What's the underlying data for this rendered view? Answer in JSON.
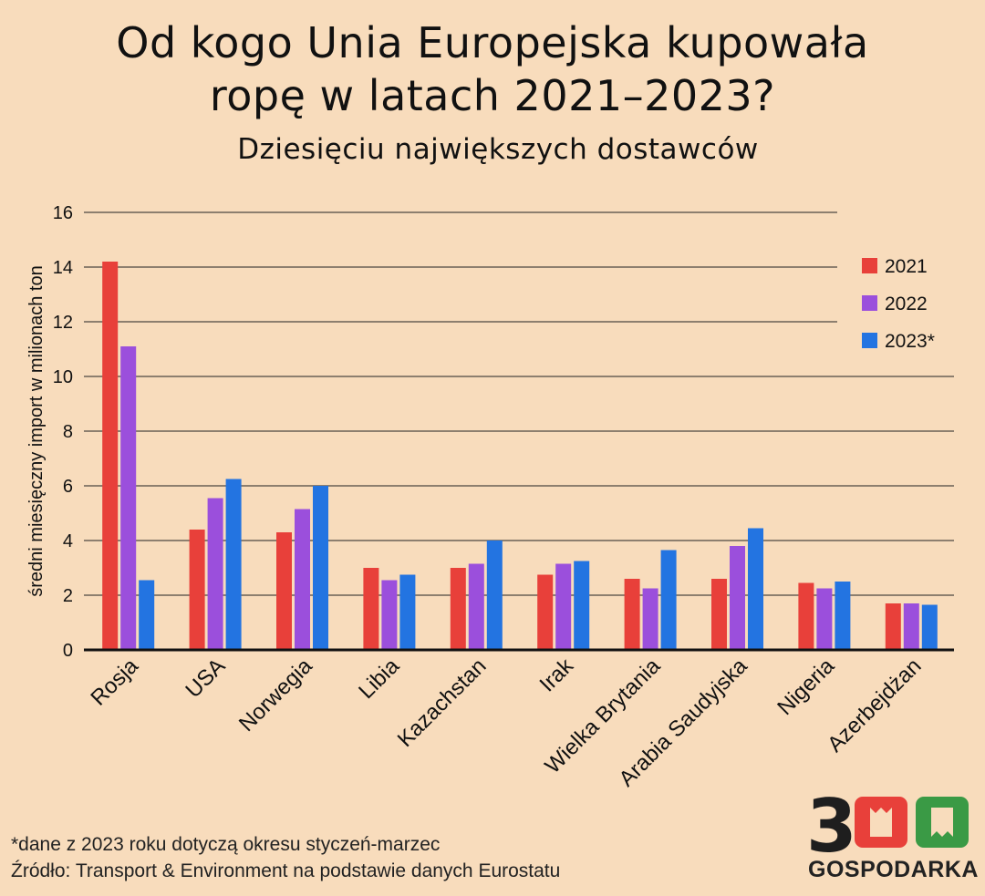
{
  "header": {
    "title_line1": "Od kogo Unia Europejska kupowała",
    "title_line2": "ropę w latach 2021–2023?",
    "subtitle": "Dziesięciu największych dostawców"
  },
  "chart_data": {
    "type": "bar",
    "title": "Od kogo Unia Europejska kupowała ropę w latach 2021–2023?",
    "subtitle": "Dziesięciu największych dostawców",
    "xlabel": "",
    "ylabel": "średni miesięczny import w milionach ton",
    "ylim": [
      0,
      16
    ],
    "yticks": [
      0,
      2,
      4,
      6,
      8,
      10,
      12,
      14,
      16
    ],
    "grid": true,
    "legend_position": "top-right",
    "categories": [
      "Rosja",
      "USA",
      "Norwegia",
      "Libia",
      "Kazachstan",
      "Irak",
      "Wielka Brytania",
      "Arabia Saudyjska",
      "Nigeria",
      "Azerbejdżan"
    ],
    "series": [
      {
        "name": "2021",
        "color": "#e8403a",
        "values": [
          14.2,
          4.4,
          4.3,
          3.0,
          3.0,
          2.75,
          2.6,
          2.6,
          2.45,
          1.7
        ]
      },
      {
        "name": "2022",
        "color": "#9b4fdc",
        "values": [
          11.1,
          5.55,
          5.15,
          2.55,
          3.15,
          3.15,
          2.25,
          3.8,
          2.25,
          1.7
        ]
      },
      {
        "name": "2023*",
        "color": "#2374e1",
        "values": [
          2.55,
          6.25,
          6.0,
          2.75,
          4.0,
          3.25,
          3.65,
          4.45,
          2.5,
          1.65
        ]
      }
    ]
  },
  "footer": {
    "note": "*dane z 2023 roku dotyczą okresu styczeń-marzec",
    "source": "Źródło: Transport & Environment na podstawie danych Eurostatu"
  },
  "logo": {
    "digits": "300",
    "word": "GOSPODARKA",
    "colors": {
      "dark": "#1e1e1e",
      "red": "#e8403a",
      "green": "#3a9a45"
    }
  }
}
